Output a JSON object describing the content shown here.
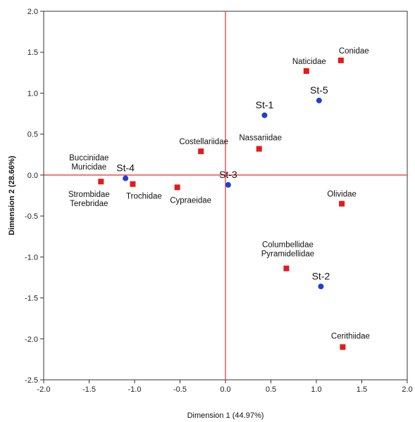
{
  "chart_data": {
    "type": "scatter",
    "xlabel": "Dimension 1 (44.97%)",
    "ylabel": "Dimension 2 (28.66%)",
    "xlim": [
      -2.0,
      2.0
    ],
    "ylim": [
      -2.5,
      2.0
    ],
    "x_ticks": [
      "-2.0",
      "-1.5",
      "-1.0",
      "-0.5",
      "0.0",
      "0.5",
      "1.0",
      "1.5",
      "2.0"
    ],
    "y_ticks": [
      "2.0",
      "1.5",
      "1.0",
      "0.5",
      "0.0",
      "-0.5",
      "-1.0",
      "-1.5",
      "-2.0",
      "-2.5"
    ],
    "grid": false,
    "reference_lines": {
      "x": 0,
      "y": 0,
      "color": "#e8282f"
    },
    "series": [
      {
        "kind": "families",
        "marker": "square",
        "color": "#e31a1c",
        "points": [
          {
            "x": 1.27,
            "y": 1.4,
            "label": "Conidae"
          },
          {
            "x": 0.89,
            "y": 1.27,
            "label": "Naticidae"
          },
          {
            "x": -0.27,
            "y": 0.29,
            "label": "Costellariidae"
          },
          {
            "x": 0.37,
            "y": 0.32,
            "label": "Nassariidae"
          },
          {
            "x": -1.37,
            "y": -0.08,
            "label": "Buccinidae\nMuricidae\nStrombidae\nTerebridae"
          },
          {
            "x": -1.02,
            "y": -0.11,
            "label": "Trochidae"
          },
          {
            "x": -0.53,
            "y": -0.15,
            "label": "Cypraeidae"
          },
          {
            "x": 1.28,
            "y": -0.35,
            "label": "Olividae"
          },
          {
            "x": 0.67,
            "y": -1.14,
            "label": "Columbellidae\nPyramidellidae"
          },
          {
            "x": 1.29,
            "y": -2.1,
            "label": "Cerithiidae"
          }
        ]
      },
      {
        "kind": "stations",
        "marker": "circle",
        "color": "#1f3fd6",
        "points": [
          {
            "x": 0.43,
            "y": 0.73,
            "label": "St-1"
          },
          {
            "x": 1.05,
            "y": -1.36,
            "label": "St-2"
          },
          {
            "x": 0.03,
            "y": -0.12,
            "label": "St-3"
          },
          {
            "x": -1.1,
            "y": -0.04,
            "label": "St-4"
          },
          {
            "x": 1.03,
            "y": 0.91,
            "label": "St-5"
          }
        ]
      }
    ]
  }
}
